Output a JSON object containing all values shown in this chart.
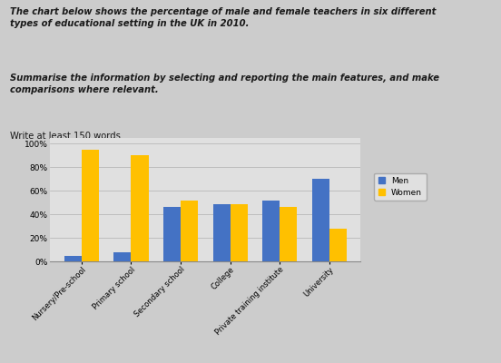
{
  "categories": [
    "Nursery/Pre-school",
    "Primary school",
    "Secondary school",
    "College",
    "Private training institute",
    "University"
  ],
  "men_values": [
    5,
    8,
    46,
    49,
    52,
    70
  ],
  "women_values": [
    95,
    90,
    52,
    49,
    46,
    28
  ],
  "men_color": "#4472C4",
  "women_color": "#FFC000",
  "ylabel_ticks": [
    "0%",
    "20%",
    "40%",
    "60%",
    "80%",
    "100%"
  ],
  "ytick_values": [
    0,
    20,
    40,
    60,
    80,
    100
  ],
  "ylim": [
    0,
    105
  ],
  "legend_men": "Men",
  "legend_women": "Women",
  "bar_width": 0.35,
  "text_block1_bold_italic": "The chart below shows the percentage of male and female teachers in six different\ntypes of educational setting in the UK in 2010.",
  "text_block2_bold_italic": "Summarise the information by selecting and reporting the main features, and make\ncomparisons where relevant.",
  "text_block3_normal": "Write at least 150 words.",
  "background_color": "#cccccc",
  "plot_bg_color": "#e0e0e0",
  "right_panel_color": "#999999"
}
